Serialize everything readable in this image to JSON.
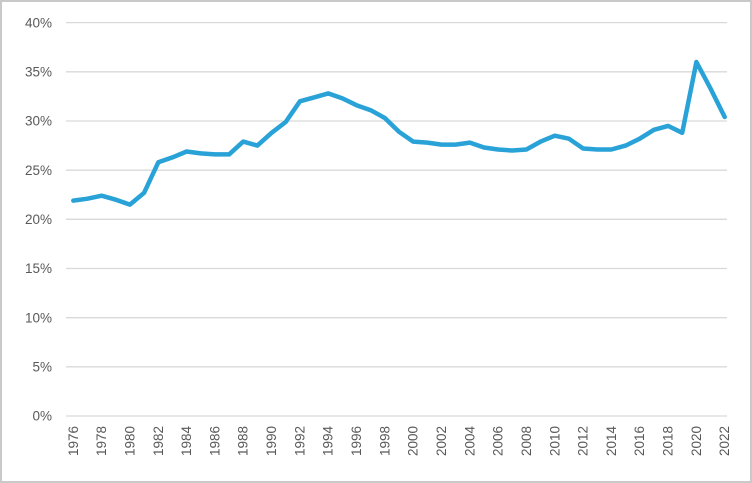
{
  "chart": {
    "line_color": "#29a2d8",
    "grid_color": "#d9d9d9",
    "axis_text_color": "#595959",
    "frame_border_color": "#c9c9c9",
    "background_color": "#ffffff"
  },
  "chart_data": {
    "type": "line",
    "title": "",
    "xlabel": "",
    "ylabel": "",
    "legend": "none",
    "grid": "horizontal",
    "ylim": [
      0,
      40
    ],
    "ytick_step": 5,
    "xtick_step": 2,
    "ytick_labels": [
      "0%",
      "5%",
      "10%",
      "15%",
      "20%",
      "25%",
      "30%",
      "35%",
      "40%"
    ],
    "xtick_labels": [
      "1976",
      "1978",
      "1980",
      "1982",
      "1984",
      "1986",
      "1988",
      "1990",
      "1992",
      "1994",
      "1996",
      "1998",
      "2000",
      "2002",
      "2004",
      "2006",
      "2008",
      "2010",
      "2012",
      "2014",
      "2016",
      "2018",
      "2020",
      "2022"
    ],
    "x": [
      1976,
      1977,
      1978,
      1979,
      1980,
      1981,
      1982,
      1983,
      1984,
      1985,
      1986,
      1987,
      1988,
      1989,
      1990,
      1991,
      1992,
      1993,
      1994,
      1995,
      1996,
      1997,
      1998,
      1999,
      2000,
      2001,
      2002,
      2003,
      2004,
      2005,
      2006,
      2007,
      2008,
      2009,
      2010,
      2011,
      2012,
      2013,
      2014,
      2015,
      2016,
      2017,
      2018,
      2019,
      2020,
      2021,
      2022
    ],
    "values": [
      21.9,
      22.1,
      22.4,
      22.0,
      21.5,
      22.7,
      25.8,
      26.3,
      26.9,
      26.7,
      26.6,
      26.6,
      27.9,
      27.5,
      28.8,
      29.9,
      32.0,
      32.4,
      32.8,
      32.3,
      31.6,
      31.1,
      30.3,
      28.9,
      27.9,
      27.8,
      27.6,
      27.6,
      27.8,
      27.3,
      27.1,
      27.0,
      27.1,
      27.9,
      28.5,
      28.2,
      27.2,
      27.1,
      27.1,
      27.5,
      28.2,
      29.1,
      29.5,
      28.8,
      36.0,
      33.3,
      30.4
    ]
  }
}
